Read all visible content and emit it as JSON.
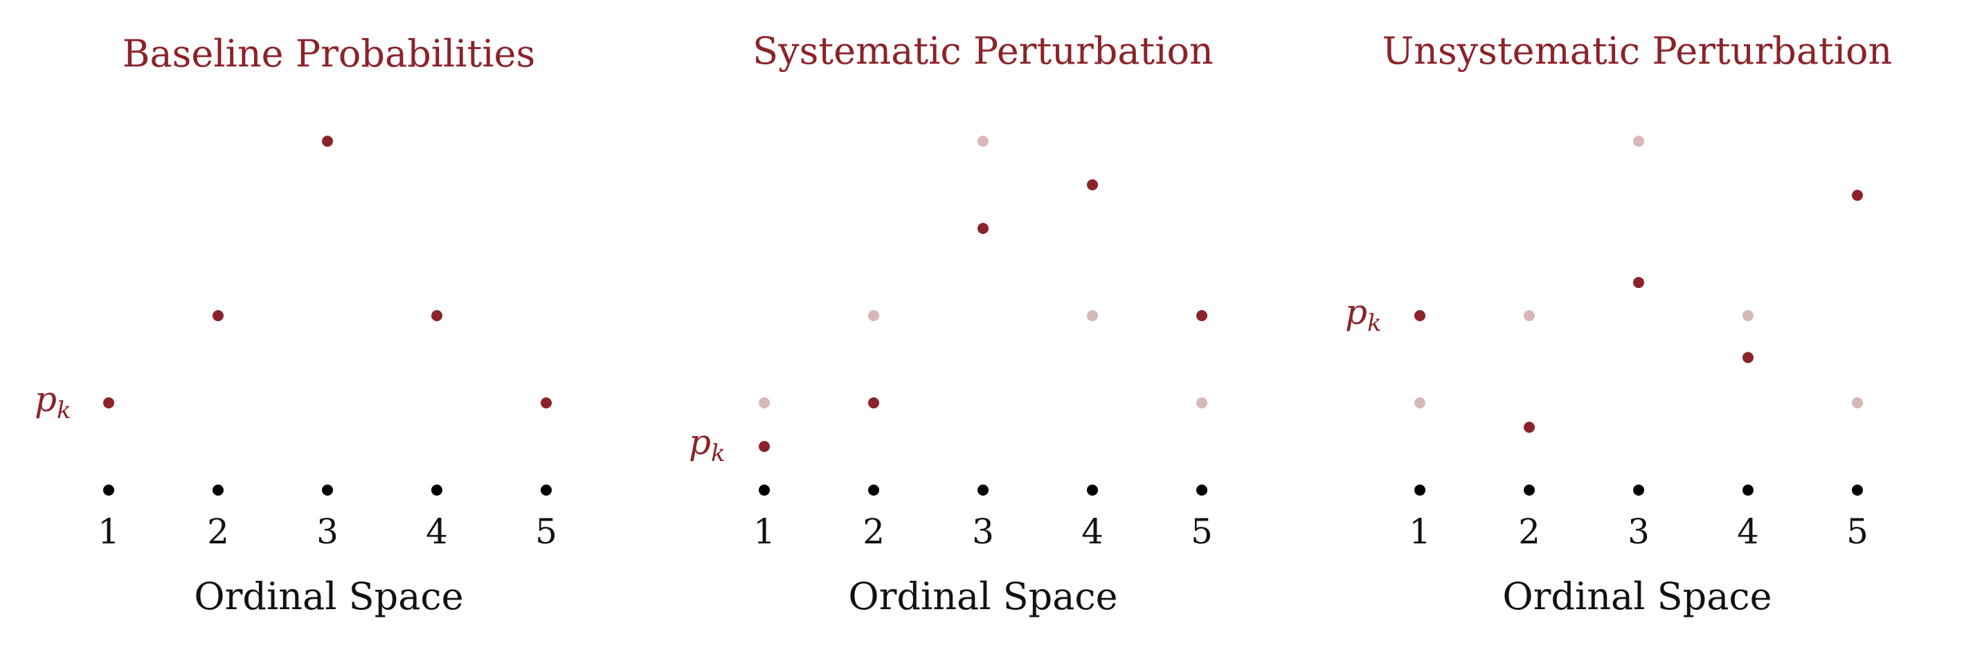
{
  "colors": {
    "accent": "#8b2329",
    "faded": "#d8b7ba",
    "axis_dot": "#000000",
    "text": "#111111"
  },
  "chart_data": [
    {
      "type": "scatter",
      "title": "Baseline Probabilities",
      "xlabel": "Ordinal Space",
      "categories": [
        "1",
        "2",
        "3",
        "4",
        "5"
      ],
      "y_scale": "relative probability (no printed axis)",
      "series": [
        {
          "role": "current",
          "values": [
            1,
            2,
            4,
            2,
            1
          ]
        }
      ],
      "annotation": {
        "text": "p",
        "subscript": "k",
        "at_category": "1"
      }
    },
    {
      "type": "scatter",
      "title": "Systematic Perturbation",
      "xlabel": "Ordinal Space",
      "categories": [
        "1",
        "2",
        "3",
        "4",
        "5"
      ],
      "series": [
        {
          "role": "baseline (faded)",
          "values": [
            1,
            2,
            4,
            2,
            1
          ]
        },
        {
          "role": "perturbed",
          "values": [
            0.5,
            1,
            3,
            3.5,
            2
          ]
        }
      ],
      "annotation": {
        "text": "p",
        "subscript": "k",
        "at_category": "1"
      }
    },
    {
      "type": "scatter",
      "title": "Unsystematic Perturbation",
      "xlabel": "Ordinal Space",
      "categories": [
        "1",
        "2",
        "3",
        "4",
        "5"
      ],
      "series": [
        {
          "role": "baseline (faded)",
          "values": [
            1,
            2,
            4,
            2,
            1
          ]
        },
        {
          "role": "perturbed",
          "values": [
            2,
            0.72,
            2.38,
            1.52,
            3.38
          ]
        }
      ],
      "annotation": {
        "text": "p",
        "subscript": "k",
        "at_category": "1"
      }
    }
  ]
}
